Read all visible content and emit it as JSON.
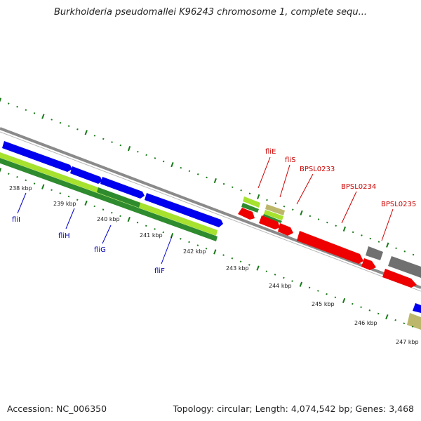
{
  "title": "Burkholderia pseudomallei K96243 chromosome 1, complete sequ...",
  "footer": {
    "accession": "Accession: NC_006350",
    "summary": "Topology: circular; Length: 4,074,542 bp; Genes: 3,468"
  },
  "colors": {
    "forward_gene": "#0000ee",
    "reverse_gene": "#ee0000",
    "pseudo_gene": "#707070",
    "rna_light": "#a6e22e",
    "rna_dark": "#2e8b2e",
    "khaki": "#bdb76b",
    "tick": "#1a7a1a",
    "backbone": "#8a8a8a"
  },
  "ticks": [
    {
      "label": "238 kbp"
    },
    {
      "label": "239 kbp"
    },
    {
      "label": "240 kbp"
    },
    {
      "label": "241 kbp"
    },
    {
      "label": "242 kbp"
    },
    {
      "label": "243 kbp"
    },
    {
      "label": "244 kbp"
    },
    {
      "label": "245 kbp"
    },
    {
      "label": "246 kbp"
    },
    {
      "label": "247 kbp"
    }
  ],
  "gene_labels": {
    "blue": [
      "fliI",
      "fliH",
      "fliG",
      "fliF"
    ],
    "red": [
      "fliE",
      "fliS",
      "BPSL0233",
      "BPSL0234",
      "BPSL0235"
    ]
  }
}
